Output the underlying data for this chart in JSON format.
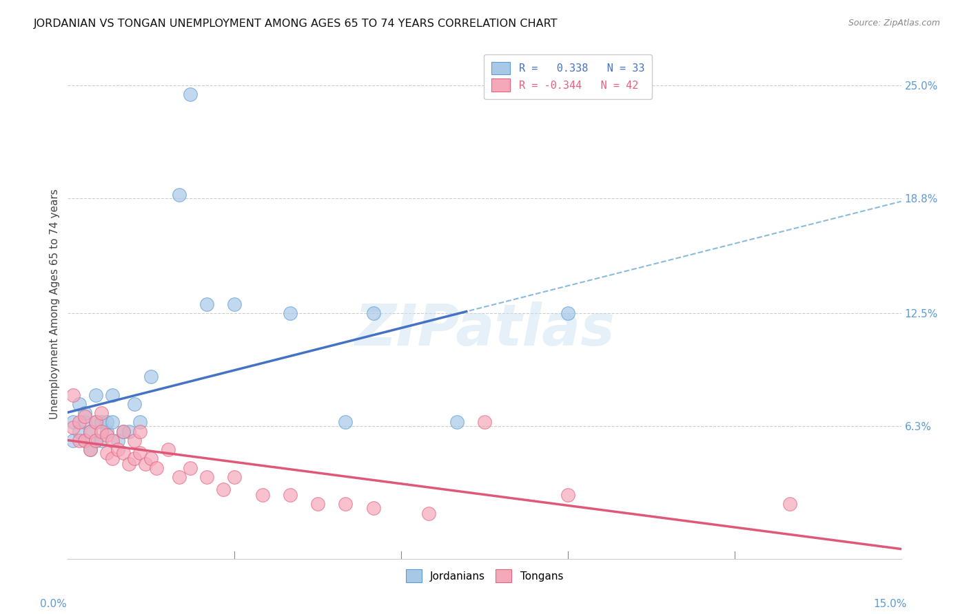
{
  "title": "JORDANIAN VS TONGAN UNEMPLOYMENT AMONG AGES 65 TO 74 YEARS CORRELATION CHART",
  "source": "Source: ZipAtlas.com",
  "ylabel": "Unemployment Among Ages 65 to 74 years",
  "ytick_labels": [
    "25.0%",
    "18.8%",
    "12.5%",
    "6.3%"
  ],
  "ytick_values": [
    0.25,
    0.188,
    0.125,
    0.063
  ],
  "R_jordanian": 0.338,
  "N_jordanian": 33,
  "R_tongan": -0.344,
  "N_tongan": 42,
  "jordanian_face_color": "#a8c8e8",
  "tongan_face_color": "#f5a8b8",
  "jordanian_edge_color": "#5b9bd5",
  "tongan_edge_color": "#e86080",
  "jordanian_line_color": "#4472c4",
  "tongan_line_color": "#e05878",
  "dashed_line_color": "#88bbdd",
  "jordanian_x": [
    0.001,
    0.001,
    0.002,
    0.002,
    0.003,
    0.003,
    0.003,
    0.004,
    0.004,
    0.005,
    0.005,
    0.005,
    0.006,
    0.006,
    0.007,
    0.007,
    0.008,
    0.008,
    0.009,
    0.01,
    0.011,
    0.012,
    0.013,
    0.015,
    0.02,
    0.022,
    0.025,
    0.03,
    0.04,
    0.05,
    0.055,
    0.07,
    0.09
  ],
  "jordanian_y": [
    0.055,
    0.065,
    0.06,
    0.075,
    0.055,
    0.065,
    0.07,
    0.06,
    0.05,
    0.055,
    0.065,
    0.08,
    0.055,
    0.065,
    0.06,
    0.065,
    0.065,
    0.08,
    0.055,
    0.06,
    0.06,
    0.075,
    0.065,
    0.09,
    0.19,
    0.245,
    0.13,
    0.13,
    0.125,
    0.065,
    0.125,
    0.065,
    0.125
  ],
  "tongan_x": [
    0.001,
    0.001,
    0.002,
    0.002,
    0.003,
    0.003,
    0.004,
    0.004,
    0.005,
    0.005,
    0.006,
    0.006,
    0.007,
    0.007,
    0.008,
    0.008,
    0.009,
    0.01,
    0.01,
    0.011,
    0.012,
    0.012,
    0.013,
    0.013,
    0.014,
    0.015,
    0.016,
    0.018,
    0.02,
    0.022,
    0.025,
    0.028,
    0.03,
    0.035,
    0.04,
    0.045,
    0.05,
    0.055,
    0.065,
    0.075,
    0.09,
    0.13
  ],
  "tongan_y": [
    0.062,
    0.08,
    0.065,
    0.055,
    0.055,
    0.068,
    0.06,
    0.05,
    0.055,
    0.065,
    0.06,
    0.07,
    0.048,
    0.058,
    0.045,
    0.055,
    0.05,
    0.048,
    0.06,
    0.042,
    0.045,
    0.055,
    0.048,
    0.06,
    0.042,
    0.045,
    0.04,
    0.05,
    0.035,
    0.04,
    0.035,
    0.028,
    0.035,
    0.025,
    0.025,
    0.02,
    0.02,
    0.018,
    0.015,
    0.065,
    0.025,
    0.02
  ],
  "xmin": 0.0,
  "xmax": 0.15,
  "ymin": -0.01,
  "ymax": 0.27,
  "solid_line_end_x": 0.072,
  "watermark": "ZIPatlas",
  "background_color": "#ffffff"
}
